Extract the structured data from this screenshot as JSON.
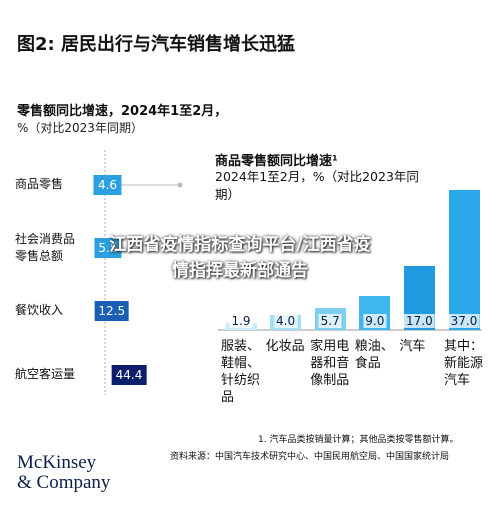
{
  "header": {
    "title": "图2: 居民出行与汽车销售增长迅猛",
    "subtitle": "零售额同比增速，2024年1至2月，",
    "unit": "%（对比2023年同期）"
  },
  "chart_data": [
    {
      "type": "dot",
      "categories": [
        "商品零售",
        "社会消费品零售总额",
        "餐饮收入",
        "航空客运量"
      ],
      "values": [
        4.6,
        5.5,
        12.5,
        44.4
      ],
      "colors": [
        "#2aa0e0",
        "#2aa0e0",
        "#1a5fb4",
        "#0b1f6b"
      ]
    },
    {
      "type": "bar",
      "title": "商品零售额同比增速¹",
      "subtitle": "2024年1至2月，%（对比2023年同期）",
      "categories": [
        "服装、鞋帽、针纺织品",
        "化妆品",
        "家用电器和音像制品",
        "粮油、食品",
        "汽车",
        "其中：新能源汽车"
      ],
      "values": [
        1.9,
        4.0,
        5.7,
        9.0,
        17.0,
        37.0
      ],
      "value_labels": [
        "1.9",
        "4.0",
        "5.7",
        "9.0",
        "17.0",
        "37.0"
      ],
      "colors": [
        "#c9ecfa",
        "#a5def5",
        "#7fcff0",
        "#3fb6ec",
        "#1f9be0",
        "#2aa8ea"
      ]
    }
  ],
  "footnote": "1. 汽车品类按销量计算；其他品类按零售额计算。",
  "source": "资料来源：中国汽车技术研究中心、中国民用航空局、中国国家统计局",
  "logo": [
    "McKinsey",
    "& Company"
  ],
  "overlay": [
    "江西省疫情指标查询平台/江西省疫",
    "情指挥最新部通告"
  ]
}
